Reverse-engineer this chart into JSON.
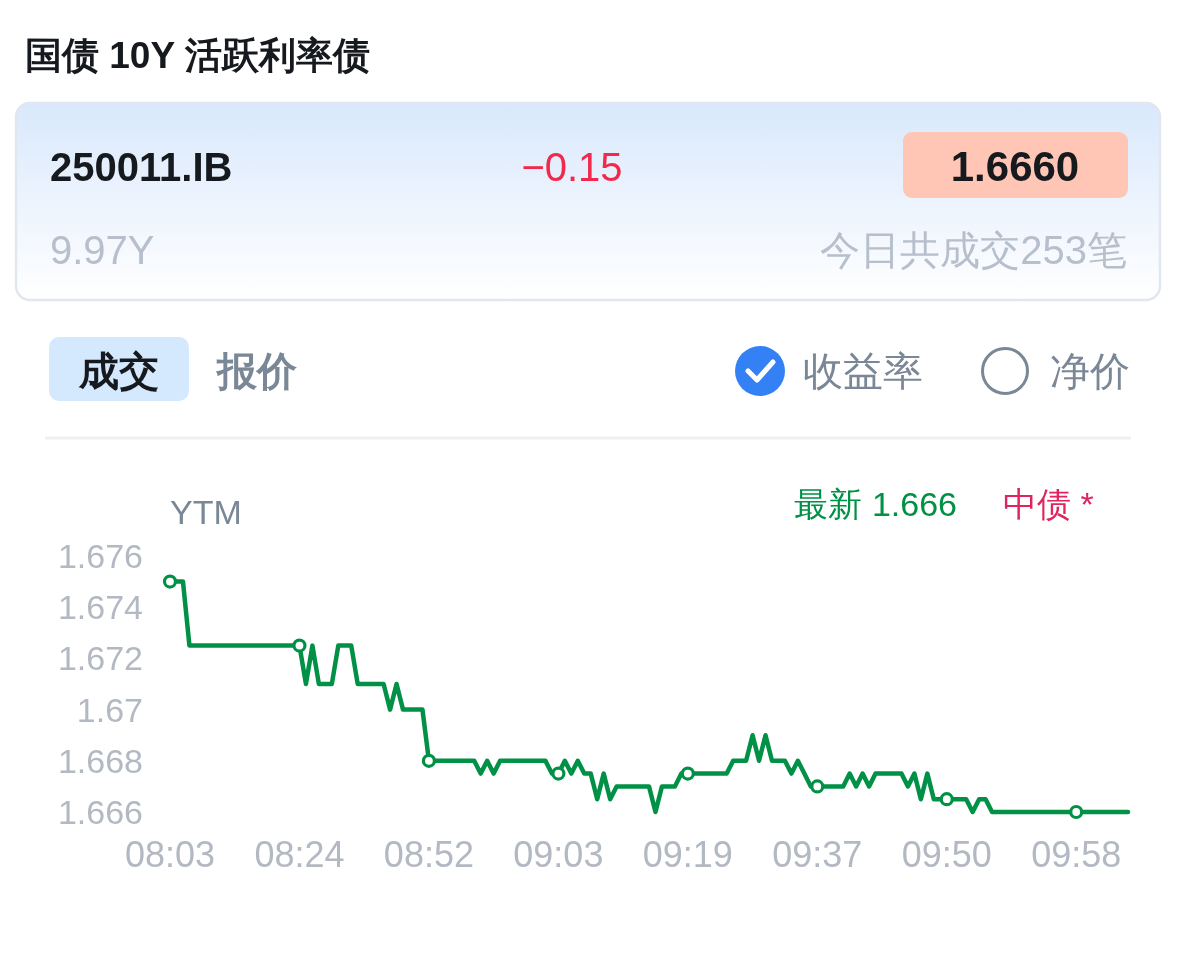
{
  "chart_data": {
    "type": "line",
    "title": "国债 10Y 活跃利率债",
    "ylabel": "YTM",
    "annotations": [
      "250011.IB",
      "−0.15",
      "1.6660",
      "9.97Y",
      "今日共成交253笔",
      "成交",
      "报价",
      "收益率",
      "净价",
      "最新 1.666",
      "中债 *"
    ],
    "categories": [
      "08:03",
      null,
      null,
      null,
      null,
      null,
      null,
      null,
      null,
      null,
      null,
      null,
      null,
      null,
      null,
      null,
      null,
      null,
      null,
      null,
      "08:24",
      null,
      null,
      null,
      null,
      null,
      null,
      null,
      null,
      null,
      null,
      null,
      null,
      null,
      null,
      null,
      null,
      null,
      null,
      null,
      "08:52",
      null,
      null,
      null,
      null,
      null,
      null,
      null,
      null,
      null,
      null,
      null,
      null,
      null,
      null,
      null,
      null,
      null,
      null,
      null,
      "09:03",
      null,
      null,
      null,
      null,
      null,
      null,
      null,
      null,
      null,
      null,
      null,
      null,
      null,
      null,
      null,
      null,
      null,
      null,
      null,
      "09:19",
      null,
      null,
      null,
      null,
      null,
      null,
      null,
      null,
      null,
      null,
      null,
      null,
      null,
      null,
      null,
      null,
      null,
      null,
      null,
      "09:37",
      null,
      null,
      null,
      null,
      null,
      null,
      null,
      null,
      null,
      null,
      null,
      null,
      null,
      null,
      null,
      null,
      null,
      null,
      null,
      "09:50",
      null,
      null,
      null,
      null,
      null,
      null,
      null,
      null,
      null,
      null,
      null,
      null,
      null,
      null,
      null,
      null,
      null,
      null,
      null,
      "09:58",
      null,
      null,
      null,
      null,
      null,
      null,
      null,
      null
    ],
    "series": [
      {
        "color": "#009146",
        "values": [
          1.675,
          1.675,
          1.675,
          1.6725,
          1.6725,
          1.6725,
          1.6725,
          1.6725,
          1.6725,
          1.6725,
          1.6725,
          1.6725,
          1.6725,
          1.6725,
          1.6725,
          1.6725,
          1.6725,
          1.6725,
          1.6725,
          1.6725,
          1.6725,
          1.671,
          1.6725,
          1.671,
          1.671,
          1.671,
          1.6725,
          1.6725,
          1.6725,
          1.671,
          1.671,
          1.671,
          1.671,
          1.671,
          1.67,
          1.671,
          1.67,
          1.67,
          1.67,
          1.67,
          1.668,
          1.668,
          1.668,
          1.668,
          1.668,
          1.668,
          1.668,
          1.668,
          1.6675,
          1.668,
          1.6675,
          1.668,
          1.668,
          1.668,
          1.668,
          1.668,
          1.668,
          1.668,
          1.668,
          1.6675,
          1.6675,
          1.668,
          1.6675,
          1.668,
          1.6675,
          1.6675,
          1.6665,
          1.6675,
          1.6665,
          1.667,
          1.667,
          1.667,
          1.667,
          1.667,
          1.667,
          1.666,
          1.667,
          1.667,
          1.667,
          1.6675,
          1.6675,
          1.6675,
          1.6675,
          1.6675,
          1.6675,
          1.6675,
          1.6675,
          1.668,
          1.668,
          1.668,
          1.669,
          1.668,
          1.669,
          1.668,
          1.668,
          1.668,
          1.6675,
          1.668,
          1.6675,
          1.667,
          1.667,
          1.667,
          1.667,
          1.667,
          1.667,
          1.6675,
          1.667,
          1.6675,
          1.667,
          1.6675,
          1.6675,
          1.6675,
          1.6675,
          1.6675,
          1.667,
          1.6675,
          1.6665,
          1.6675,
          1.6665,
          1.6665,
          1.6665,
          1.6665,
          1.6665,
          1.6665,
          1.666,
          1.6665,
          1.6665,
          1.666,
          1.666,
          1.666,
          1.666,
          1.666,
          1.666,
          1.666,
          1.666,
          1.666,
          1.666,
          1.666,
          1.666,
          1.666,
          1.666,
          1.666,
          1.666,
          1.666,
          1.666,
          1.666,
          1.666,
          1.666,
          1.666
        ]
      },
      {
        "type": "scatter",
        "color": "#009146",
        "marker": "circle",
        "x": [
          "08:03",
          "08:24",
          "08:52",
          "09:03",
          "09:19",
          "09:37",
          "09:50",
          "09:58"
        ],
        "values": [
          1.675,
          1.6725,
          1.668,
          1.6675,
          1.6675,
          1.667,
          1.6665,
          1.666
        ]
      }
    ],
    "ylim": [
      1.666,
      1.676
    ],
    "yticks": [
      1.666,
      1.668,
      1.67,
      1.672,
      1.674,
      1.676
    ]
  }
}
